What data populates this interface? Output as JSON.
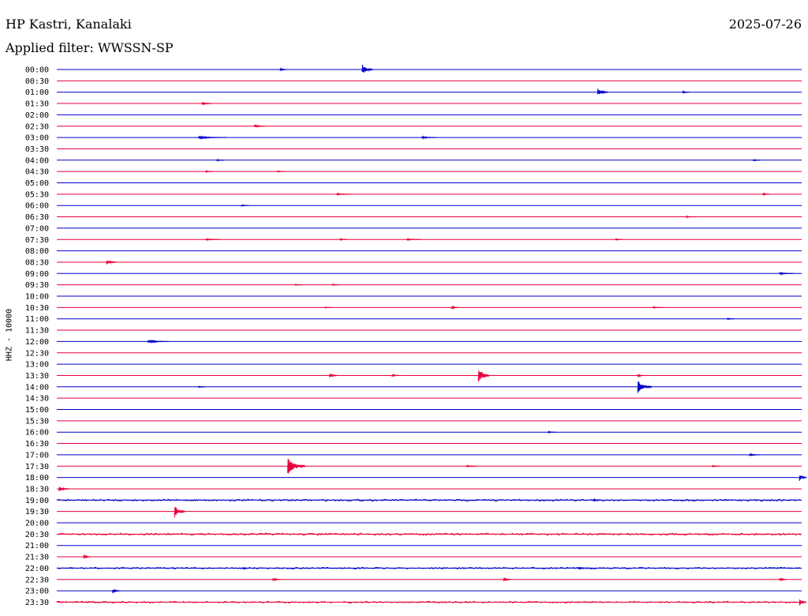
{
  "header": {
    "station": "HP Kastri, Kanalaki",
    "date": "2025-07-26",
    "filter": "Applied filter: WWSSN-SP"
  },
  "chart_data": {
    "type": "line",
    "title": "HP Kastri, Kanalaki",
    "ylabel": "HHZ - 10000",
    "colors": {
      "even": "#0000c8",
      "odd": "#e8003c"
    },
    "rows": [
      {
        "time": "00:00",
        "events": [
          [
            0.41,
            7,
            1.5
          ],
          [
            0.3,
            2,
            1
          ]
        ]
      },
      {
        "time": "00:30",
        "events": []
      },
      {
        "time": "01:00",
        "events": [
          [
            0.726,
            5,
            1.5
          ],
          [
            0.84,
            1.5,
            1
          ]
        ]
      },
      {
        "time": "01:30",
        "events": [
          [
            0.195,
            2,
            1.5
          ]
        ]
      },
      {
        "time": "02:00",
        "events": []
      },
      {
        "time": "02:30",
        "events": [
          [
            0.265,
            2,
            1.5
          ]
        ]
      },
      {
        "time": "03:00",
        "events": [
          [
            0.19,
            1.5,
            4
          ],
          [
            0.49,
            1.5,
            2
          ]
        ]
      },
      {
        "time": "03:30",
        "events": []
      },
      {
        "time": "04:00",
        "events": [
          [
            0.215,
            1,
            1
          ],
          [
            0.935,
            1,
            1
          ]
        ]
      },
      {
        "time": "04:30",
        "events": [
          [
            0.2,
            1,
            1
          ],
          [
            0.296,
            1,
            1
          ]
        ]
      },
      {
        "time": "05:00",
        "events": []
      },
      {
        "time": "05:30",
        "events": [
          [
            0.376,
            1,
            2
          ],
          [
            0.948,
            1.5,
            1
          ]
        ]
      },
      {
        "time": "06:00",
        "events": [
          [
            0.248,
            1,
            1
          ]
        ]
      },
      {
        "time": "06:30",
        "events": [
          [
            0.845,
            1,
            1.5
          ]
        ]
      },
      {
        "time": "07:00",
        "events": []
      },
      {
        "time": "07:30",
        "events": [
          [
            0.2,
            1,
            2
          ],
          [
            0.38,
            1,
            1
          ],
          [
            0.47,
            1,
            2
          ],
          [
            0.75,
            1,
            1
          ]
        ]
      },
      {
        "time": "08:00",
        "events": []
      },
      {
        "time": "08:30",
        "events": [
          [
            0.067,
            3,
            1.5
          ]
        ]
      },
      {
        "time": "09:00",
        "events": [
          [
            0.97,
            1.5,
            2
          ]
        ]
      },
      {
        "time": "09:30",
        "events": [
          [
            0.32,
            1,
            1
          ],
          [
            0.37,
            1,
            1
          ]
        ]
      },
      {
        "time": "10:00",
        "events": []
      },
      {
        "time": "10:30",
        "events": [
          [
            0.53,
            2,
            1
          ],
          [
            0.8,
            1,
            1.5
          ],
          [
            0.36,
            1,
            1
          ]
        ]
      },
      {
        "time": "11:00",
        "events": [
          [
            0.9,
            1,
            1
          ]
        ]
      },
      {
        "time": "11:30",
        "events": []
      },
      {
        "time": "12:00",
        "events": [
          [
            0.122,
            2,
            3
          ]
        ]
      },
      {
        "time": "12:30",
        "events": []
      },
      {
        "time": "13:00",
        "events": []
      },
      {
        "time": "13:30",
        "events": [
          [
            0.566,
            12,
            1.5
          ],
          [
            0.366,
            3,
            1.2
          ],
          [
            0.45,
            1.5,
            1.2
          ],
          [
            0.78,
            2,
            1
          ]
        ]
      },
      {
        "time": "14:00",
        "events": [
          [
            0.78,
            8,
            2
          ],
          [
            0.19,
            1,
            1
          ]
        ]
      },
      {
        "time": "14:30",
        "events": []
      },
      {
        "time": "15:00",
        "events": []
      },
      {
        "time": "15:30",
        "events": []
      },
      {
        "time": "16:00",
        "events": [
          [
            0.66,
            1,
            1
          ]
        ]
      },
      {
        "time": "16:30",
        "events": []
      },
      {
        "time": "17:00",
        "events": [
          [
            0.93,
            1.5,
            1.5
          ]
        ]
      },
      {
        "time": "17:30",
        "events": [
          [
            0.31,
            11,
            2.5
          ],
          [
            0.55,
            1,
            1.5
          ],
          [
            0.88,
            1,
            1
          ]
        ]
      },
      {
        "time": "18:00",
        "events": [
          [
            0.997,
            5,
            1
          ]
        ]
      },
      {
        "time": "18:30",
        "events": [
          [
            0.003,
            3,
            1.5
          ]
        ]
      },
      {
        "time": "19:00",
        "events": [
          [
            0.72,
            2,
            1
          ]
        ]
      },
      {
        "time": "19:30",
        "events": [
          [
            0.158,
            8,
            1.5
          ]
        ]
      },
      {
        "time": "20:00",
        "events": []
      },
      {
        "time": "20:30",
        "events": []
      },
      {
        "time": "21:00",
        "events": []
      },
      {
        "time": "21:30",
        "events": [
          [
            0.036,
            3,
            1
          ]
        ]
      },
      {
        "time": "22:00",
        "events": [
          [
            0.25,
            1,
            1
          ],
          [
            0.7,
            1,
            2
          ]
        ]
      },
      {
        "time": "22:30",
        "events": [
          [
            0.29,
            3,
            1
          ],
          [
            0.6,
            3,
            1
          ],
          [
            0.97,
            3,
            1
          ]
        ]
      },
      {
        "time": "23:00",
        "events": [
          [
            0.075,
            3,
            1
          ]
        ]
      },
      {
        "time": "23:30",
        "events": [
          [
            0.997,
            5,
            1
          ]
        ]
      }
    ],
    "noise": {
      "19:00": 1.2,
      "20:30": 1.3,
      "22:00": 1.0,
      "23:30": 1.0
    },
    "grid": false,
    "legend": "none"
  }
}
